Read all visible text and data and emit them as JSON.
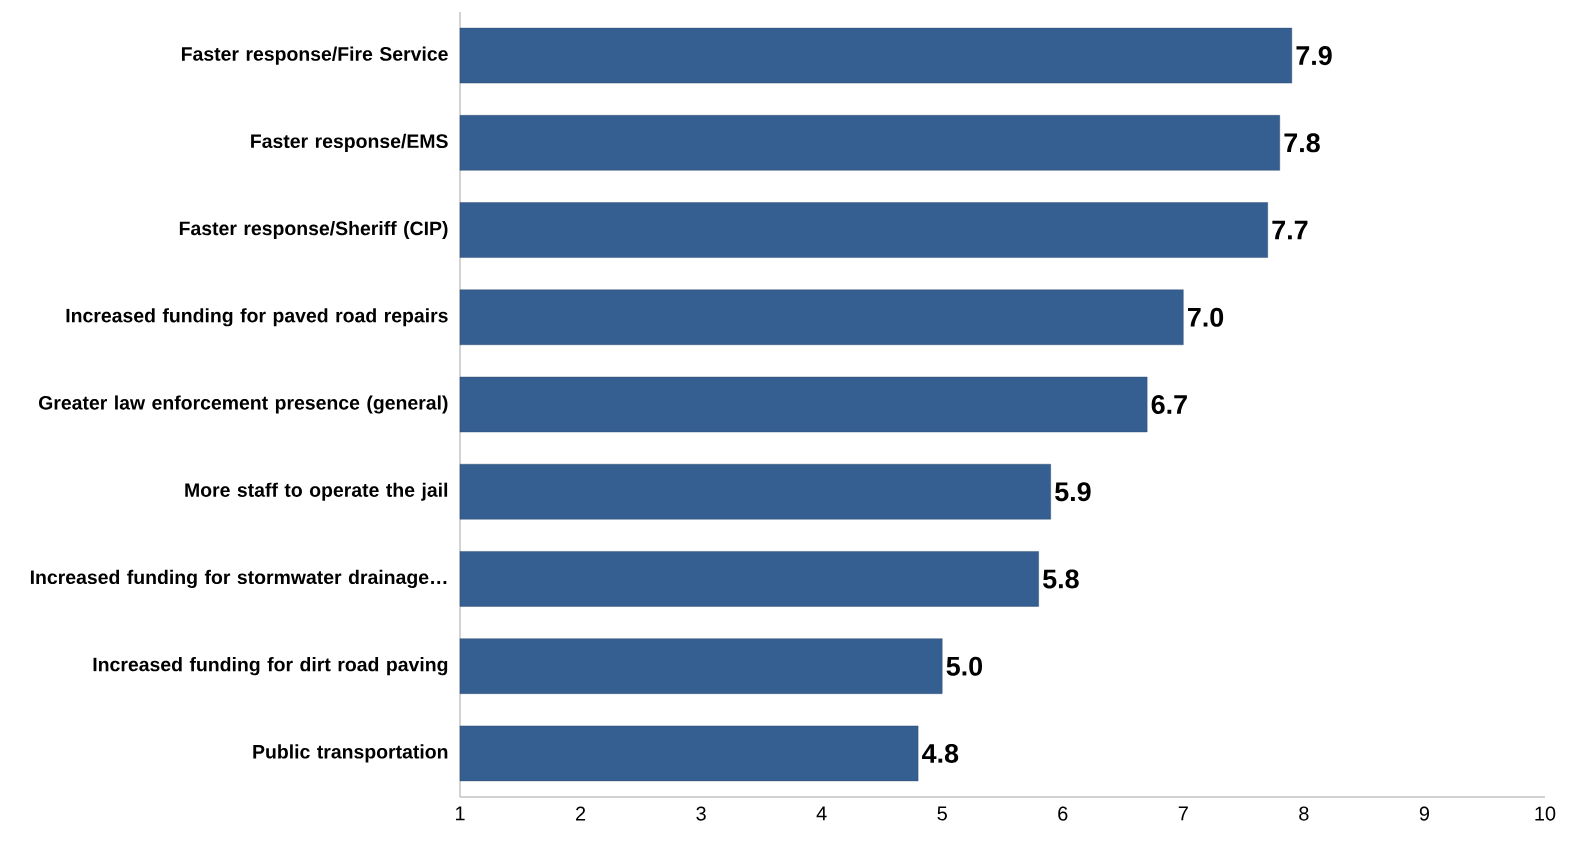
{
  "chart_data": {
    "type": "bar",
    "orientation": "horizontal",
    "categories": [
      "Faster response/Fire Service",
      "Faster response/EMS",
      "Faster response/Sheriff (CIP)",
      "Increased funding for paved road repairs",
      "Greater law enforcement presence (general)",
      "More staff to operate the jail",
      "Increased funding for stormwater drainage…",
      "Increased funding for dirt road paving",
      "Public transportation"
    ],
    "values": [
      7.9,
      7.8,
      7.7,
      7.0,
      6.7,
      5.9,
      5.8,
      5.0,
      4.8
    ],
    "value_labels": [
      "7.9",
      "7.8",
      "7.7",
      "7.0",
      "6.7",
      "5.9",
      "5.8",
      "5.0",
      "4.8"
    ],
    "color": "#365f91",
    "xlim": [
      1,
      10
    ],
    "xticks": [
      1,
      2,
      3,
      4,
      5,
      6,
      7,
      8,
      9,
      10
    ],
    "grid": false
  }
}
